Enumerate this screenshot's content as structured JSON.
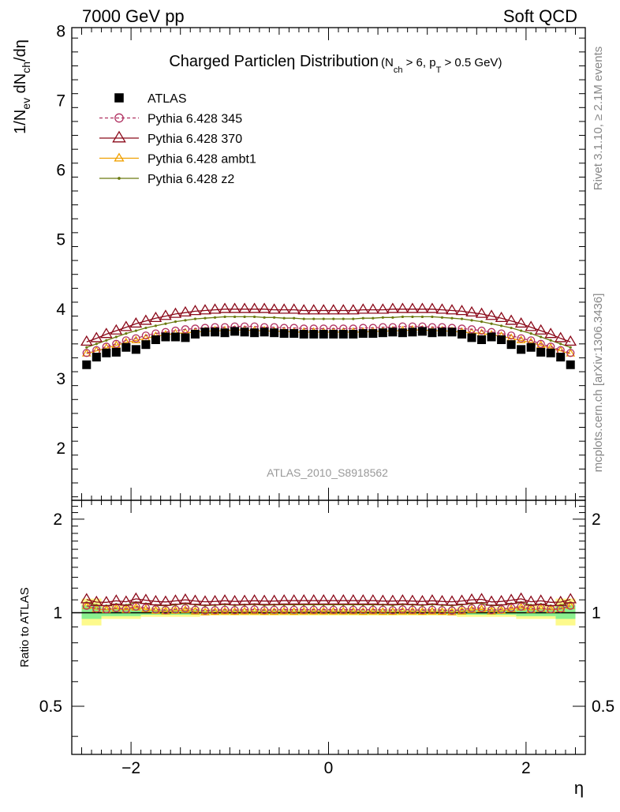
{
  "header": {
    "left": "7000 GeV pp",
    "right": "Soft QCD"
  },
  "side_labels": {
    "rivet": "Rivet 3.1.10, ≥ 2.1M events",
    "mcplots": "mcplots.cern.ch [arXiv:1306.3436]"
  },
  "chart_data": {
    "type": "scatter",
    "title_main": "Charged Particleη Distribution",
    "title_sub": "(N_ch > 6, p_T > 0.5 GeV)",
    "watermark": "ATLAS_2010_S8918562",
    "xlabel": "η",
    "ylabel": "1/N_ev dN_ch/dη",
    "ratio_ylabel": "Ratio to ATLAS",
    "xlim": [
      -2.6,
      2.6
    ],
    "ylim": [
      1.25,
      8.05
    ],
    "ratio_ylim": [
      0.35,
      2.3
    ],
    "ratio_scale": "log",
    "x": [
      -2.45,
      -2.35,
      -2.25,
      -2.15,
      -2.05,
      -1.95,
      -1.85,
      -1.75,
      -1.65,
      -1.55,
      -1.45,
      -1.35,
      -1.25,
      -1.15,
      -1.05,
      -0.95,
      -0.85,
      -0.75,
      -0.65,
      -0.55,
      -0.45,
      -0.35,
      -0.25,
      -0.15,
      -0.05,
      0.05,
      0.15,
      0.25,
      0.35,
      0.45,
      0.55,
      0.65,
      0.75,
      0.85,
      0.95,
      1.05,
      1.15,
      1.25,
      1.35,
      1.45,
      1.55,
      1.65,
      1.75,
      1.85,
      1.95,
      2.05,
      2.15,
      2.25,
      2.35,
      2.45
    ],
    "series": [
      {
        "name": "ATLAS",
        "color": "#000000",
        "marker": "filled-square",
        "values": [
          3.2,
          3.31,
          3.37,
          3.38,
          3.45,
          3.42,
          3.49,
          3.56,
          3.6,
          3.6,
          3.59,
          3.64,
          3.67,
          3.67,
          3.66,
          3.68,
          3.67,
          3.66,
          3.67,
          3.66,
          3.65,
          3.65,
          3.64,
          3.64,
          3.64,
          3.64,
          3.64,
          3.64,
          3.65,
          3.65,
          3.66,
          3.67,
          3.66,
          3.67,
          3.68,
          3.66,
          3.67,
          3.67,
          3.64,
          3.59,
          3.56,
          3.6,
          3.56,
          3.49,
          3.42,
          3.45,
          3.38,
          3.37,
          3.31,
          3.2
        ]
      },
      {
        "name": "Pythia 6.428 345",
        "color": "#b03060",
        "marker": "open-circle",
        "dashed": true,
        "values": [
          3.37,
          3.41,
          3.46,
          3.5,
          3.55,
          3.58,
          3.62,
          3.65,
          3.67,
          3.69,
          3.71,
          3.72,
          3.73,
          3.74,
          3.74,
          3.75,
          3.75,
          3.75,
          3.74,
          3.74,
          3.73,
          3.73,
          3.72,
          3.72,
          3.72,
          3.72,
          3.72,
          3.72,
          3.73,
          3.73,
          3.74,
          3.74,
          3.75,
          3.75,
          3.75,
          3.74,
          3.74,
          3.73,
          3.72,
          3.71,
          3.69,
          3.67,
          3.65,
          3.62,
          3.58,
          3.55,
          3.5,
          3.46,
          3.41,
          3.37
        ]
      },
      {
        "name": "Pythia 6.428 370",
        "color": "#8b0a1a",
        "marker": "open-triangle",
        "values": [
          3.53,
          3.58,
          3.64,
          3.69,
          3.74,
          3.79,
          3.83,
          3.87,
          3.9,
          3.93,
          3.95,
          3.97,
          3.98,
          3.99,
          4.0,
          4.0,
          4.0,
          4.0,
          4.0,
          3.99,
          3.99,
          3.99,
          3.98,
          3.98,
          3.98,
          3.98,
          3.98,
          3.98,
          3.99,
          3.99,
          3.99,
          4.0,
          4.0,
          4.0,
          4.0,
          4.0,
          3.99,
          3.98,
          3.97,
          3.95,
          3.93,
          3.9,
          3.87,
          3.83,
          3.79,
          3.74,
          3.69,
          3.64,
          3.58,
          3.53
        ]
      },
      {
        "name": "Pythia 6.428 ambt1",
        "color": "#f0a000",
        "marker": "open-triangle",
        "values": [
          3.36,
          3.4,
          3.44,
          3.48,
          3.52,
          3.55,
          3.58,
          3.61,
          3.63,
          3.65,
          3.66,
          3.67,
          3.68,
          3.69,
          3.69,
          3.7,
          3.7,
          3.69,
          3.69,
          3.68,
          3.68,
          3.67,
          3.67,
          3.67,
          3.67,
          3.67,
          3.67,
          3.67,
          3.67,
          3.68,
          3.68,
          3.69,
          3.69,
          3.7,
          3.7,
          3.69,
          3.69,
          3.68,
          3.67,
          3.66,
          3.65,
          3.63,
          3.61,
          3.58,
          3.55,
          3.52,
          3.48,
          3.44,
          3.4,
          3.36
        ]
      },
      {
        "name": "Pythia 6.428 z2",
        "color": "#6b7a10",
        "marker": "small-dot",
        "values": [
          3.45,
          3.5,
          3.55,
          3.6,
          3.65,
          3.69,
          3.73,
          3.76,
          3.79,
          3.82,
          3.84,
          3.86,
          3.87,
          3.88,
          3.89,
          3.89,
          3.89,
          3.89,
          3.88,
          3.88,
          3.87,
          3.87,
          3.86,
          3.86,
          3.86,
          3.86,
          3.86,
          3.86,
          3.87,
          3.87,
          3.88,
          3.88,
          3.89,
          3.89,
          3.89,
          3.89,
          3.88,
          3.87,
          3.86,
          3.84,
          3.82,
          3.79,
          3.76,
          3.73,
          3.69,
          3.65,
          3.6,
          3.55,
          3.5,
          3.45
        ]
      }
    ],
    "ratio_bands": [
      {
        "x0": -2.5,
        "x1": -2.3,
        "lo": 0.91,
        "hi": 1.11,
        "inner_lo": 0.955,
        "inner_hi": 1.055
      },
      {
        "x0": -2.3,
        "x1": -1.9,
        "lo": 0.955,
        "hi": 1.055,
        "inner_lo": 0.975,
        "inner_hi": 1.03
      },
      {
        "x0": -1.9,
        "x1": -1.3,
        "lo": 0.97,
        "hi": 1.04,
        "inner_lo": 0.985,
        "inner_hi": 1.02
      },
      {
        "x0": -1.3,
        "x1": 1.3,
        "lo": 0.98,
        "hi": 1.03,
        "inner_lo": 0.99,
        "inner_hi": 1.015
      },
      {
        "x0": 1.3,
        "x1": 1.9,
        "lo": 0.97,
        "hi": 1.04,
        "inner_lo": 0.985,
        "inner_hi": 1.02
      },
      {
        "x0": 1.9,
        "x1": 2.3,
        "lo": 0.955,
        "hi": 1.055,
        "inner_lo": 0.975,
        "inner_hi": 1.03
      },
      {
        "x0": 2.3,
        "x1": 2.5,
        "lo": 0.91,
        "hi": 1.11,
        "inner_lo": 0.955,
        "inner_hi": 1.055
      }
    ],
    "band_colors": {
      "outer": "#fdfa8c",
      "inner": "#8af08f"
    },
    "x_ticks": [
      -2,
      0,
      2
    ],
    "y_ticks": [
      2,
      3,
      4,
      5,
      6,
      7,
      8
    ],
    "ratio_ticks": [
      0.5,
      1,
      2
    ],
    "legend_position": "top-left"
  }
}
